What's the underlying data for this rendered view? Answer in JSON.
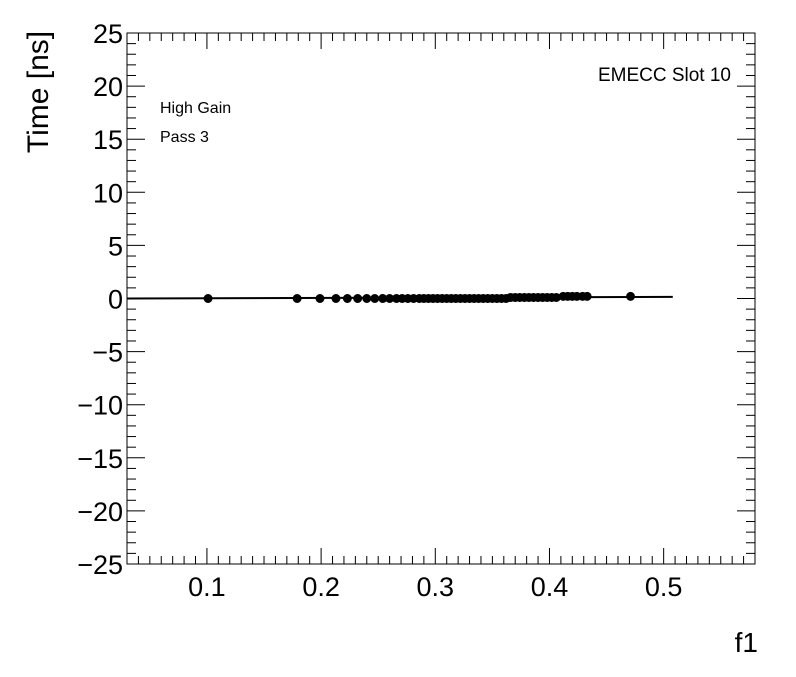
{
  "chart_data": {
    "type": "scatter",
    "title": "",
    "xlabel": "f1",
    "ylabel": "Time [ns]",
    "xlim": [
      0.03,
      0.58
    ],
    "ylim": [
      -25,
      25
    ],
    "x_ticks": [
      0.1,
      0.2,
      0.3,
      0.4,
      0.5
    ],
    "x_tick_labels": [
      "0.1",
      "0.2",
      "0.3",
      "0.4",
      "0.5"
    ],
    "y_ticks": [
      -25,
      -20,
      -15,
      -10,
      -5,
      0,
      5,
      10,
      15,
      20,
      25
    ],
    "y_tick_labels": [
      "−25",
      "−20",
      "−15",
      "−10",
      "−5",
      "0",
      "5",
      "10",
      "15",
      "20",
      "25"
    ],
    "grid": false,
    "annotations": {
      "top_right": "EMECC Slot 10",
      "line1": "High Gain",
      "line2": "Pass 3"
    },
    "fit_line": {
      "x": [
        0.03,
        0.508
      ],
      "y": [
        0.0,
        0.15
      ]
    },
    "series": [
      {
        "marker": "circle",
        "color": "#000000",
        "x": [
          0.101,
          0.179,
          0.199,
          0.213,
          0.223,
          0.232,
          0.24,
          0.247,
          0.254,
          0.26,
          0.266,
          0.271,
          0.276,
          0.281,
          0.286,
          0.29,
          0.294,
          0.298,
          0.302,
          0.306,
          0.31,
          0.314,
          0.318,
          0.322,
          0.326,
          0.33,
          0.334,
          0.338,
          0.342,
          0.346,
          0.35,
          0.354,
          0.358,
          0.362,
          0.366,
          0.37,
          0.374,
          0.378,
          0.382,
          0.386,
          0.39,
          0.394,
          0.398,
          0.402,
          0.406,
          0.412,
          0.416,
          0.42,
          0.424,
          0.429,
          0.433,
          0.471
        ],
        "y": [
          0.0,
          0.0,
          0.0,
          0.0,
          0.0,
          0.0,
          0.0,
          0.0,
          0.0,
          0.0,
          0.0,
          0.0,
          0.0,
          0.0,
          0.0,
          0.0,
          0.0,
          0.0,
          0.0,
          0.0,
          0.0,
          0.0,
          0.0,
          0.0,
          0.0,
          0.0,
          0.0,
          0.0,
          0.0,
          0.0,
          0.0,
          0.0,
          0.0,
          0.0,
          0.1,
          0.1,
          0.1,
          0.1,
          0.1,
          0.1,
          0.1,
          0.1,
          0.1,
          0.1,
          0.1,
          0.2,
          0.2,
          0.2,
          0.2,
          0.2,
          0.2,
          0.2
        ]
      }
    ]
  }
}
